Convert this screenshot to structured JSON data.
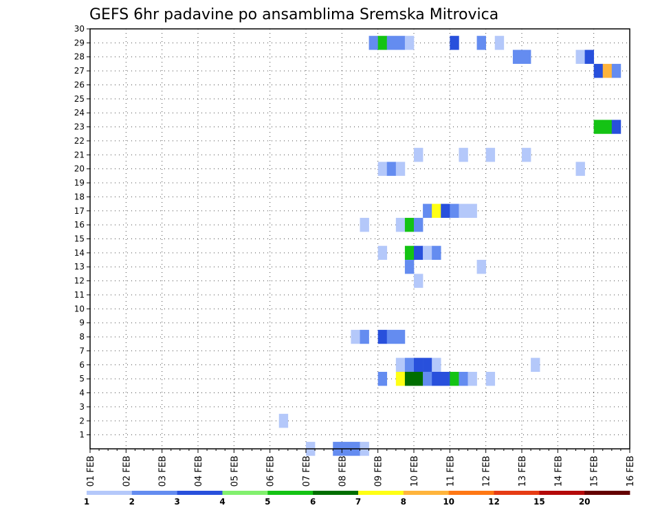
{
  "chart_data": {
    "type": "heatmap",
    "title": "GEFS 6hr padavine po ansamblima Sremska Mitrovica",
    "xlabel": "",
    "ylabel": "",
    "y_range": [
      0,
      30
    ],
    "y_ticks": [
      "1",
      "2",
      "3",
      "4",
      "5",
      "6",
      "7",
      "8",
      "9",
      "10",
      "11",
      "12",
      "13",
      "14",
      "15",
      "16",
      "17",
      "18",
      "19",
      "20",
      "21",
      "22",
      "23",
      "24",
      "25",
      "26",
      "27",
      "28",
      "29",
      "30"
    ],
    "x_range_days": [
      1,
      16
    ],
    "x_ticks": [
      "01 FEB",
      "02 FEB",
      "03 FEB",
      "04 FEB",
      "05 FEB",
      "06 FEB",
      "07 FEB",
      "08 FEB",
      "09 FEB",
      "10 FEB",
      "11 FEB",
      "12 FEB",
      "13 FEB",
      "14 FEB",
      "15 FEB",
      "16 FEB"
    ],
    "grid": true,
    "time_step_hours": 6,
    "legend": {
      "placement": "bottom",
      "colors": [
        "#b4c8fa",
        "#648cf0",
        "#2850dc",
        "#82f06e",
        "#14c314",
        "#006e00",
        "#ffff14",
        "#ffb43c",
        "#ff7814",
        "#e63c14",
        "#b40a0a",
        "#640000"
      ],
      "labels": [
        "1",
        "2",
        "3",
        "4",
        "5",
        "6",
        "7",
        "8",
        "10",
        "12",
        "15",
        "20"
      ]
    },
    "cells_description": "each cell: [member, day-of-month start, value in mm]",
    "cells": [
      [
        29,
        8.75,
        2
      ],
      [
        29,
        9.0,
        5
      ],
      [
        29,
        9.25,
        2
      ],
      [
        29,
        9.5,
        2
      ],
      [
        29,
        9.75,
        1
      ],
      [
        29,
        11.0,
        3
      ],
      [
        29,
        11.75,
        2
      ],
      [
        29,
        12.25,
        1
      ],
      [
        28,
        12.75,
        2
      ],
      [
        28,
        13.0,
        2
      ],
      [
        28,
        14.5,
        1
      ],
      [
        28,
        14.75,
        3
      ],
      [
        27,
        15.0,
        3
      ],
      [
        27,
        15.25,
        8
      ],
      [
        27,
        15.5,
        2
      ],
      [
        23,
        15.0,
        5
      ],
      [
        23,
        15.25,
        5
      ],
      [
        23,
        15.5,
        3
      ],
      [
        21,
        10.0,
        1
      ],
      [
        21,
        11.25,
        1
      ],
      [
        21,
        12.0,
        1
      ],
      [
        21,
        13.0,
        1
      ],
      [
        20,
        9.0,
        1
      ],
      [
        20,
        9.25,
        2
      ],
      [
        20,
        9.5,
        1
      ],
      [
        20,
        14.5,
        1
      ],
      [
        17,
        10.25,
        2
      ],
      [
        17,
        10.5,
        7
      ],
      [
        17,
        10.75,
        3
      ],
      [
        17,
        11.0,
        2
      ],
      [
        17,
        11.25,
        1
      ],
      [
        17,
        11.5,
        1
      ],
      [
        16,
        8.5,
        1
      ],
      [
        16,
        9.5,
        1
      ],
      [
        16,
        9.75,
        5
      ],
      [
        16,
        10.0,
        2
      ],
      [
        14,
        9.0,
        1
      ],
      [
        14,
        9.75,
        5
      ],
      [
        14,
        10.0,
        3
      ],
      [
        14,
        10.25,
        1
      ],
      [
        14,
        10.5,
        2
      ],
      [
        13,
        9.75,
        2
      ],
      [
        13,
        11.75,
        1
      ],
      [
        12,
        10.0,
        1
      ],
      [
        8,
        8.25,
        1
      ],
      [
        8,
        8.5,
        2
      ],
      [
        8,
        9.0,
        3
      ],
      [
        8,
        9.25,
        2
      ],
      [
        8,
        9.5,
        2
      ],
      [
        6,
        9.5,
        1
      ],
      [
        6,
        9.75,
        2
      ],
      [
        6,
        10.0,
        3
      ],
      [
        6,
        10.25,
        3
      ],
      [
        6,
        10.5,
        1
      ],
      [
        6,
        13.25,
        1
      ],
      [
        5,
        9.0,
        2
      ],
      [
        5,
        9.5,
        7
      ],
      [
        5,
        9.75,
        6
      ],
      [
        5,
        10.0,
        6
      ],
      [
        5,
        10.25,
        2
      ],
      [
        5,
        10.5,
        3
      ],
      [
        5,
        10.75,
        3
      ],
      [
        5,
        11.0,
        5
      ],
      [
        5,
        11.25,
        2
      ],
      [
        5,
        11.5,
        1
      ],
      [
        5,
        12.0,
        1
      ],
      [
        2,
        6.25,
        1
      ],
      [
        0,
        7.0,
        1
      ],
      [
        0,
        7.75,
        2
      ],
      [
        0,
        8.0,
        2
      ],
      [
        0,
        8.25,
        2
      ],
      [
        0,
        8.5,
        1
      ]
    ]
  }
}
